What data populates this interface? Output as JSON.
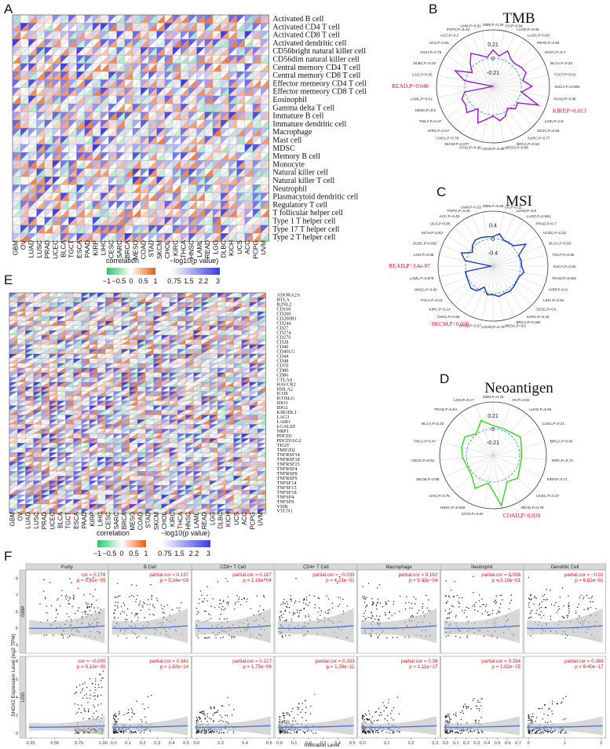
{
  "panels": {
    "A": "A",
    "B": "B",
    "C": "C",
    "D": "D",
    "E": "E",
    "F": "F"
  },
  "chart_data": [
    {
      "panel": "A",
      "type": "heatmap",
      "x_categories": [
        "GBM",
        "OV",
        "LUAD",
        "LUSC",
        "PRAD",
        "UCEC",
        "BLCA",
        "TGCT",
        "ESCA",
        "PAAD",
        "KIRP",
        "LIHC",
        "CESC",
        "SARC",
        "BRCA",
        "MESO",
        "COAD",
        "STAD",
        "SKCM",
        "CHOL",
        "KIRC",
        "THCA",
        "HNSC",
        "LAML",
        "READ",
        "LGG",
        "DLBC",
        "KICH",
        "UCS",
        "ACC",
        "PCPG",
        "UVM"
      ],
      "y_categories": [
        "Activated B cell",
        "Activated CD4 T cell",
        "Activated CD8 T cell",
        "Activated dendritic cell",
        "CD56bright natural killer cell",
        "CD56dim natural killer cell",
        "Central memory CD4 T cell",
        "Central memory CD8 T cell",
        "Effector memeory CD4 T cell",
        "Effector memeory CD8 T cell",
        "Eosinophil",
        "Gamma delta T cell",
        "Immature B cell",
        "Immature dendritic cell",
        "Macrophage",
        "Mast cell",
        "MDSC",
        "Memory B cell",
        "Monocyte",
        "Natural killer cell",
        "Natural killer T cell",
        "Neutrophil",
        "Plasmacytoid dendritic cell",
        "Regulatory T cell",
        "T follicular helper cell",
        "Type 1 T helper cell",
        "Type 17 T helper cell",
        "Type 2 T helper cell"
      ],
      "legend_correlation": {
        "title": "correlation",
        "ticks": [
          "−1",
          "−0.5",
          "0",
          "0.5",
          "1"
        ]
      },
      "legend_pvalue": {
        "title": "−log10(p value)",
        "ticks": [
          "0.75",
          "1.5",
          "2.2",
          "3"
        ]
      }
    },
    {
      "panel": "B",
      "type": "radar",
      "title": "TMB",
      "radial_ticks": [
        "0.21",
        "0",
        "-0.21"
      ],
      "rlim": [
        -0.42,
        0.42
      ],
      "series_color": "#9a14c8",
      "categories": [
        "GBM,P=0.29",
        "OV,P=0.84",
        "LUAD,P=0.05",
        "LUSC,P=0.63",
        "PRAD,P=0.84",
        "UCEC,P=0.4",
        "BLCA,P=0.34",
        "TGCT,P=0.51",
        "ESCA,P=0.069",
        "PAAD,P=0.98",
        "KIRP,P=0.013",
        "LIHC,P=0.9",
        "CESC,P=0.55",
        "SARC,P=0.77",
        "BRCA,P=0.53",
        "MESO,P=0.68",
        "COAD,P=0.89",
        "STAD,P=0.36",
        "SKCM,P=0.077",
        "CHOL,P=0.78",
        "KIRC,P=0.17",
        "THCA,P=0.47",
        "HNSC,P=0.5",
        "LAML,P=0.91",
        "READ,P=0.048",
        "LGG,P=0.95",
        "DLBC,P=0.22",
        "KICH,P=0.75",
        "UCS,P=0.81",
        "ACC,P=0.2",
        "PCPG,P=0.43",
        "UVM,P=0.91"
      ],
      "highlight": [
        10,
        24
      ],
      "values": [
        0.12,
        0.04,
        0.15,
        0.06,
        0.05,
        0.09,
        0.11,
        0.03,
        0.16,
        0.01,
        0.31,
        0.02,
        0.05,
        -0.03,
        0.06,
        0.1,
        0.02,
        0.08,
        0.17,
        -0.02,
        0.13,
        0.07,
        0.08,
        0.01,
        -0.42,
        0.01,
        0.19,
        -0.05,
        0.06,
        0.17,
        0.08,
        0.02
      ]
    },
    {
      "panel": "C",
      "type": "radar",
      "title": "MSI",
      "radial_ticks": [
        "0.4",
        "0",
        "-0.4"
      ],
      "rlim": [
        -0.8,
        0.8
      ],
      "series_color": "#1733c8",
      "categories": [
        "GBM,P=0.29",
        "OV,P=0.11",
        "LUAD,P=0.8",
        "LUSC,P=0.691",
        "PRAD,P=0.7",
        "UCEC,P=0.32",
        "BLCA,P=0.93",
        "TGCT,P=0.65",
        "ESCA,P=0.82",
        "PAAD,P=0.081",
        "KIRP,P=0.9",
        "LIHC,P=0.84",
        "CESC,P=0.5",
        "SARC,P=0.43",
        "BRCA,P=0.082",
        "MESO,P=0.5",
        "COAD,P=0.78",
        "STAD,P=0.37",
        "SKCM,P=0.038",
        "CHOL,P=0.59",
        "KIRC,P=0.14",
        "THCA,P=0.41",
        "HNSC,P=0.60",
        "LAML,P=0.879",
        "READ,P=3.4e-07",
        "LGG,P=0.66",
        "DLBC,P=0.062",
        "KICH,P=0.63",
        "UCS,P=0.85",
        "ACC,P=0.43",
        "PCPG,P=0.40",
        "UVM,P=0.32"
      ],
      "highlight": [
        18,
        24
      ],
      "values": [
        0.06,
        0.16,
        0.02,
        0.03,
        0.04,
        0.35,
        0.01,
        0.04,
        0.03,
        0.12,
        0.02,
        0.02,
        0.05,
        0.08,
        0.06,
        0.1,
        0.03,
        0.05,
        -0.14,
        0.06,
        0.11,
        0.05,
        0.03,
        0.02,
        -0.75,
        0.03,
        0.2,
        -0.08,
        0.05,
        0.12,
        0.1,
        0.07
      ]
    },
    {
      "panel": "D",
      "type": "radar",
      "title": "Neoantigen",
      "radial_ticks": [
        "0.21",
        "0",
        "-0.21"
      ],
      "rlim": [
        -0.42,
        0.42
      ],
      "series_color": "#35d21e",
      "categories": [
        "GBM,P=0.78",
        "OV,P=0.82",
        "LUAD,P=0.66",
        "LUSC,P=0.21",
        "BRCA,P=0.66",
        "KIRC,P=0.72",
        "KIRP,P=0.71",
        "UCEC,P=0.37",
        "READ,P=0.78",
        "COAD,P=0.039",
        "STAD,P=0.81",
        "HNSC,P=0.059",
        "LIHC,P=0.75",
        "SKCM,P=0.88",
        "CESC,P=0.61",
        "THCA,P=0.47",
        "BLCA,P=0.33",
        "PRAD,P=0.94",
        "LGG,P=0.17"
      ],
      "highlight": [
        9
      ],
      "values": [
        0.05,
        0.03,
        0.04,
        0.1,
        0.04,
        0.03,
        0.04,
        0.11,
        0.05,
        0.38,
        0.02,
        0.17,
        0.04,
        0.02,
        0.06,
        0.09,
        0.11,
        0.01,
        0.16
      ]
    },
    {
      "panel": "E",
      "type": "heatmap",
      "x_categories": [
        "GBM",
        "OV",
        "LUAD",
        "LUSC",
        "PRAD",
        "UCEC",
        "BLCA",
        "TGCT",
        "ESCA",
        "PAAD",
        "KIRP",
        "LIHC",
        "CESC",
        "SARC",
        "BRCA",
        "MESO",
        "COAD",
        "STAD",
        "SKCM",
        "CHOL",
        "KIRC",
        "THCA",
        "HNSC",
        "LAML",
        "READ",
        "LGG",
        "DLBC",
        "KICH",
        "UCS",
        "ACC",
        "PCPG",
        "UVM"
      ],
      "y_categories": [
        "ADORA2A",
        "BTLA",
        "B2NL2",
        "CD160",
        "CD200",
        "CD200R1",
        "CD244",
        "CD27",
        "CD274",
        "CD276",
        "CD28",
        "CD40",
        "CD40LG",
        "CD44",
        "CD48",
        "CD70",
        "CD80",
        "CD86",
        "CTLA4",
        "HAVCR2",
        "HHLA2",
        "ICOS",
        "ICOSLG",
        "IDO1",
        "IDO2",
        "KIR3DL1",
        "LAG3",
        "LAIR1",
        "LGALS9",
        "NRP1",
        "PDCD1",
        "PDCD1LG2",
        "TIGIT",
        "TMIGD2",
        "TNFRSF14",
        "TNFRSF18",
        "TNFRSF25",
        "TNFRSF4",
        "TNFRSF8",
        "TNFRSF9",
        "TNFSF14",
        "TNFSF15",
        "TNFSF18",
        "TNFSF4",
        "TNFSF9",
        "VSIR",
        "VTCN1"
      ],
      "legend_correlation": {
        "title": "correlation",
        "ticks": [
          "−1",
          "−0.5",
          "0",
          "0.5",
          "1"
        ]
      },
      "legend_pvalue": {
        "title": "−log10(p value)",
        "ticks": [
          "0.75",
          "1.5",
          "2.2",
          "3"
        ]
      }
    },
    {
      "panel": "F",
      "type": "scatter",
      "ylabel": "SHOX2 Expression Level (log2 TPM)",
      "xlabel": "Infiltration Level",
      "row_labels": [
        "GBM",
        "LGG"
      ],
      "columns": [
        "Purity",
        "B Cell",
        "CD8+ T Cell",
        "CD4+ T Cell",
        "Macrophage",
        "Neutrophil",
        "Dendritic Cell"
      ],
      "ylim_GBM": [
        3.5,
        8.5
      ],
      "ylim_LGG": [
        -0.5,
        8.5
      ],
      "stats": {
        "GBM": [
          {
            "l1": "cor = 0.276",
            "l2": "p = 9.81e−09"
          },
          {
            "l1": "partial.cor = 0.137",
            "l2": "p = 5.14e−03"
          },
          {
            "l1": "partial.cor = 0.187",
            "l2": "p = 1.16e−04"
          },
          {
            "l1": "partial.cor = −0.039",
            "l2": "p = 4.23e−01"
          },
          {
            "l1": "partial.cor = 0.162",
            "l2": "p = 9.03e−04"
          },
          {
            "l1": "partial.cor = 0.006",
            "l2": "p = 9.10e−01"
          },
          {
            "l1": "partial.cor = −0.02",
            "l2": "p = 6.82e−01"
          }
        ],
        "LGG": [
          {
            "l1": "cor = −0.005",
            "l2": "p = 9.10e−01"
          },
          {
            "l1": "partial.cor = 0.341",
            "l2": "p = 1.62e−14"
          },
          {
            "l1": "partial.cor = 0.217",
            "l2": "p = 1.75e−06"
          },
          {
            "l1": "partial.cor = 0.303",
            "l2": "p = 1.39e−11"
          },
          {
            "l1": "partial.cor = 0.38",
            "l2": "p = 1.11e−17"
          },
          {
            "l1": "partial.cor = 0.354",
            "l2": "p = 1.92e−15"
          },
          {
            "l1": "partial.cor = 0.369",
            "l2": "p = 8.40e−17"
          }
        ]
      },
      "x_ticks": [
        [
          "0.25",
          "0.50",
          "0.75",
          "1.00"
        ],
        [
          "0.0",
          "0.1",
          "0.2",
          "0.3",
          "0.4",
          "0.5"
        ],
        [
          "0.0",
          "0.2",
          "0.4",
          "0.6"
        ],
        [
          "0.0",
          "0.1",
          "0.2",
          "0.3",
          "0.4",
          "0.5"
        ],
        [
          "0.0",
          "0.1",
          "0.2",
          "0.3"
        ],
        [
          "0.0",
          "0.1",
          "0.2",
          "0.3",
          "0.4",
          "0.5",
          "0.6",
          "0.7"
        ],
        [
          "0",
          "1",
          "2"
        ]
      ],
      "y_ticks_GBM": [
        "4",
        "5",
        "6",
        "7",
        "8"
      ],
      "y_ticks_LGG": [
        "0",
        "2",
        "4",
        "6",
        "8"
      ]
    }
  ]
}
